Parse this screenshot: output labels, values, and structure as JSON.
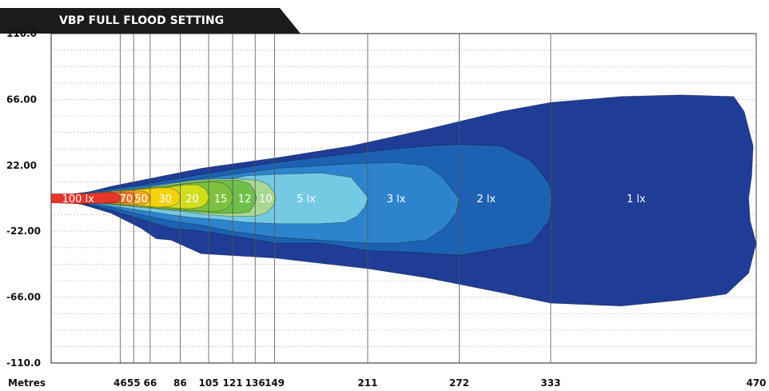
{
  "chart_data": {
    "type": "area",
    "title": "VBP FULL FLOOD SETTING",
    "xlabel": "Metres",
    "ylabel": "",
    "xlim": [
      0,
      470
    ],
    "ylim": [
      -110,
      110
    ],
    "x_ticks": [
      46,
      55,
      66,
      86,
      105,
      121,
      136,
      149,
      211,
      272,
      333,
      470
    ],
    "y_ticks": [
      "110.0",
      "66.00",
      "22.00",
      "-22.00",
      "-66.00",
      "-110.0"
    ],
    "grid": true,
    "contours": [
      {
        "name": "1 lx",
        "label": "1 lx",
        "color": "#1f3d96",
        "label_x": 390,
        "label_y": 0,
        "outline": [
          [
            0,
            1
          ],
          [
            20,
            3
          ],
          [
            40,
            8
          ],
          [
            60,
            12
          ],
          [
            100,
            20
          ],
          [
            150,
            27
          ],
          [
            200,
            35
          ],
          [
            250,
            46
          ],
          [
            300,
            58
          ],
          [
            333,
            64
          ],
          [
            380,
            68
          ],
          [
            420,
            69
          ],
          [
            455,
            68
          ],
          [
            462,
            58
          ],
          [
            468,
            35
          ],
          [
            467,
            15
          ],
          [
            465,
            0
          ],
          [
            466,
            -15
          ],
          [
            470,
            -30
          ],
          [
            465,
            -50
          ],
          [
            450,
            -64
          ],
          [
            420,
            -68
          ],
          [
            380,
            -72
          ],
          [
            333,
            -70
          ],
          [
            300,
            -63
          ],
          [
            250,
            -53
          ],
          [
            211,
            -47
          ],
          [
            150,
            -40
          ],
          [
            100,
            -37
          ],
          [
            80,
            -28
          ],
          [
            70,
            -27
          ],
          [
            60,
            -20
          ],
          [
            40,
            -10
          ],
          [
            20,
            -4
          ],
          [
            0,
            -1
          ]
        ]
      },
      {
        "name": "2 lx",
        "label": "2 lx",
        "color": "#1d61b3",
        "label_x": 290,
        "label_y": 0,
        "outline": [
          [
            0,
            1
          ],
          [
            30,
            5
          ],
          [
            60,
            9
          ],
          [
            100,
            16
          ],
          [
            150,
            24
          ],
          [
            200,
            30
          ],
          [
            250,
            35
          ],
          [
            272,
            36
          ],
          [
            300,
            35
          ],
          [
            320,
            25
          ],
          [
            332,
            10
          ],
          [
            334,
            0
          ],
          [
            332,
            -15
          ],
          [
            320,
            -30
          ],
          [
            290,
            -35
          ],
          [
            272,
            -38
          ],
          [
            240,
            -36
          ],
          [
            211,
            -35
          ],
          [
            180,
            -30
          ],
          [
            150,
            -30
          ],
          [
            120,
            -25
          ],
          [
            100,
            -22
          ],
          [
            80,
            -20
          ],
          [
            60,
            -14
          ],
          [
            40,
            -8
          ],
          [
            20,
            -3
          ],
          [
            0,
            -1
          ]
        ]
      },
      {
        "name": "3 lx",
        "label": "3 lx",
        "color": "#2e84cc",
        "label_x": 230,
        "label_y": 0,
        "outline": [
          [
            0,
            1
          ],
          [
            30,
            4
          ],
          [
            60,
            8
          ],
          [
            100,
            13
          ],
          [
            150,
            20
          ],
          [
            200,
            23
          ],
          [
            230,
            24
          ],
          [
            250,
            22
          ],
          [
            260,
            15
          ],
          [
            268,
            5
          ],
          [
            272,
            0
          ],
          [
            270,
            -10
          ],
          [
            262,
            -20
          ],
          [
            250,
            -28
          ],
          [
            230,
            -30
          ],
          [
            211,
            -30
          ],
          [
            180,
            -28
          ],
          [
            150,
            -26
          ],
          [
            120,
            -22
          ],
          [
            100,
            -18
          ],
          [
            80,
            -15
          ],
          [
            60,
            -11
          ],
          [
            40,
            -6
          ],
          [
            20,
            -3
          ],
          [
            0,
            -1
          ]
        ]
      },
      {
        "name": "5 lx",
        "label": "5 lx",
        "color": "#74c9e3",
        "label_x": 170,
        "label_y": 0,
        "outline": [
          [
            0,
            1
          ],
          [
            30,
            4
          ],
          [
            60,
            6
          ],
          [
            100,
            9
          ],
          [
            130,
            15
          ],
          [
            150,
            16
          ],
          [
            180,
            17
          ],
          [
            200,
            14
          ],
          [
            205,
            8
          ],
          [
            210,
            2
          ],
          [
            211,
            0
          ],
          [
            209,
            -6
          ],
          [
            204,
            -12
          ],
          [
            196,
            -16
          ],
          [
            180,
            -17
          ],
          [
            150,
            -17
          ],
          [
            130,
            -16
          ],
          [
            110,
            -14
          ],
          [
            95,
            -13
          ],
          [
            80,
            -11
          ],
          [
            60,
            -8
          ],
          [
            40,
            -5
          ],
          [
            20,
            -2
          ],
          [
            0,
            -1
          ]
        ]
      },
      {
        "name": "10 lx",
        "label": "10",
        "color": "#a9d894",
        "label_x": 143,
        "label_y": 0,
        "outline": [
          [
            0,
            1
          ],
          [
            30,
            3
          ],
          [
            55,
            6
          ],
          [
            75,
            9
          ],
          [
            95,
            12
          ],
          [
            110,
            13
          ],
          [
            125,
            13
          ],
          [
            138,
            12
          ],
          [
            145,
            9
          ],
          [
            149,
            3
          ],
          [
            150,
            0
          ],
          [
            148,
            -5
          ],
          [
            143,
            -10
          ],
          [
            135,
            -12
          ],
          [
            120,
            -12
          ],
          [
            105,
            -11
          ],
          [
            90,
            -9
          ],
          [
            70,
            -7
          ],
          [
            50,
            -5
          ],
          [
            30,
            -3
          ],
          [
            15,
            -2
          ],
          [
            0,
            -1
          ]
        ]
      },
      {
        "name": "12 lx",
        "label": "12",
        "color": "#6fbf49",
        "label_x": 129,
        "label_y": 0,
        "outline": [
          [
            0,
            1
          ],
          [
            30,
            3
          ],
          [
            55,
            6
          ],
          [
            75,
            8
          ],
          [
            95,
            11
          ],
          [
            110,
            12
          ],
          [
            125,
            12
          ],
          [
            132,
            10
          ],
          [
            135,
            6
          ],
          [
            137,
            0
          ],
          [
            135,
            -5
          ],
          [
            132,
            -9
          ],
          [
            125,
            -10
          ],
          [
            110,
            -10
          ],
          [
            95,
            -9
          ],
          [
            75,
            -7
          ],
          [
            55,
            -5
          ],
          [
            30,
            -3
          ],
          [
            0,
            -1
          ]
        ]
      },
      {
        "name": "15 lx",
        "label": "15",
        "color": "#7ec13e",
        "label_x": 113,
        "label_y": 0,
        "outline": [
          [
            0,
            1
          ],
          [
            30,
            3
          ],
          [
            55,
            6
          ],
          [
            75,
            8
          ],
          [
            92,
            10
          ],
          [
            108,
            11
          ],
          [
            115,
            10
          ],
          [
            119,
            7
          ],
          [
            121,
            2
          ],
          [
            121,
            0
          ],
          [
            120,
            -4
          ],
          [
            117,
            -7
          ],
          [
            110,
            -9
          ],
          [
            95,
            -8
          ],
          [
            75,
            -7
          ],
          [
            55,
            -5
          ],
          [
            30,
            -3
          ],
          [
            0,
            -1
          ]
        ]
      },
      {
        "name": "20 lx",
        "label": "20",
        "color": "#d2dd1c",
        "label_x": 94,
        "label_y": 0,
        "outline": [
          [
            0,
            1
          ],
          [
            30,
            3
          ],
          [
            55,
            5
          ],
          [
            75,
            7
          ],
          [
            90,
            9
          ],
          [
            98,
            9
          ],
          [
            103,
            6
          ],
          [
            105,
            2
          ],
          [
            105,
            0
          ],
          [
            104,
            -3
          ],
          [
            100,
            -6
          ],
          [
            92,
            -7
          ],
          [
            75,
            -6
          ],
          [
            55,
            -4
          ],
          [
            30,
            -3
          ],
          [
            0,
            -1
          ]
        ]
      },
      {
        "name": "30 lx",
        "label": "30",
        "color": "#f6d20e",
        "label_x": 76,
        "label_y": 0,
        "outline": [
          [
            0,
            1
          ],
          [
            25,
            3
          ],
          [
            45,
            5
          ],
          [
            60,
            6
          ],
          [
            72,
            7
          ],
          [
            80,
            7
          ],
          [
            84,
            5
          ],
          [
            86,
            2
          ],
          [
            86,
            0
          ],
          [
            85,
            -3
          ],
          [
            81,
            -5
          ],
          [
            72,
            -6
          ],
          [
            60,
            -5
          ],
          [
            45,
            -4
          ],
          [
            25,
            -2
          ],
          [
            0,
            -1
          ]
        ]
      },
      {
        "name": "50 lx",
        "label": "50",
        "color": "#f6a41c",
        "label_x": 60,
        "label_y": 0,
        "outline": [
          [
            0,
            1
          ],
          [
            25,
            3
          ],
          [
            40,
            4
          ],
          [
            52,
            5
          ],
          [
            60,
            5
          ],
          [
            64,
            4
          ],
          [
            66,
            1
          ],
          [
            66,
            0
          ],
          [
            65,
            -2
          ],
          [
            62,
            -4
          ],
          [
            55,
            -4
          ],
          [
            40,
            -3
          ],
          [
            25,
            -2
          ],
          [
            0,
            -1
          ]
        ]
      },
      {
        "name": "70 lx",
        "label": "70",
        "color": "#f0742a",
        "label_x": 50,
        "label_y": 0,
        "outline": [
          [
            0,
            1
          ],
          [
            20,
            2
          ],
          [
            35,
            3
          ],
          [
            45,
            4
          ],
          [
            52,
            4
          ],
          [
            55,
            3
          ],
          [
            56,
            0
          ],
          [
            55,
            -2
          ],
          [
            52,
            -3
          ],
          [
            45,
            -3
          ],
          [
            35,
            -3
          ],
          [
            20,
            -2
          ],
          [
            0,
            -1
          ]
        ]
      },
      {
        "name": "100 lx",
        "label": "100 lx",
        "color": "#e8352a",
        "label_x": 18,
        "label_y": 0,
        "outline": [
          [
            0,
            3
          ],
          [
            15,
            3
          ],
          [
            30,
            3.5
          ],
          [
            40,
            4
          ],
          [
            44,
            3
          ],
          [
            46,
            1
          ],
          [
            46,
            0
          ],
          [
            45,
            -2
          ],
          [
            42,
            -3
          ],
          [
            30,
            -3.5
          ],
          [
            15,
            -3.5
          ],
          [
            0,
            -3
          ]
        ]
      }
    ]
  }
}
